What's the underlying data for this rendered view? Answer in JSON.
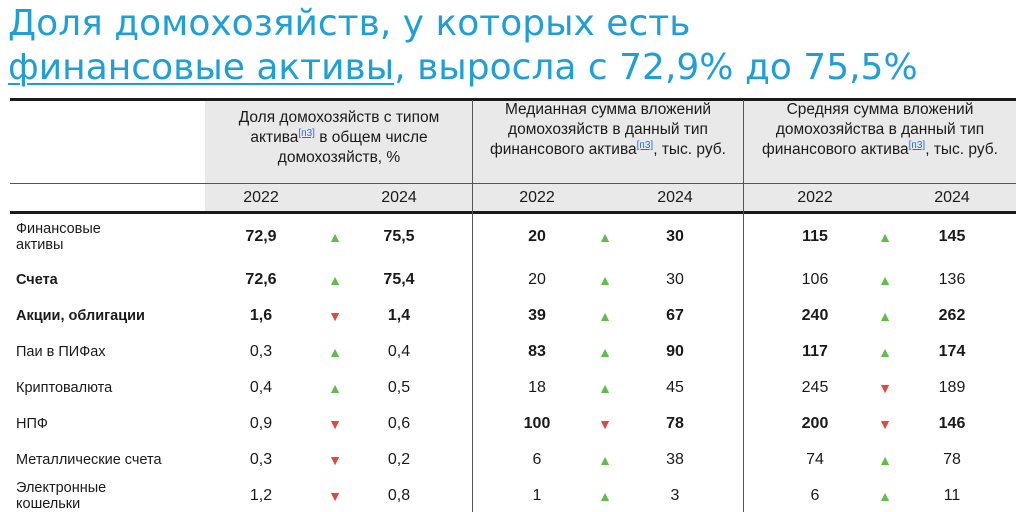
{
  "title": {
    "line1": "Доля домохозяйств, у которых есть",
    "line2_link": "финансовые активы",
    "line2_rest": ", выросла с 72,9% до 75,5%"
  },
  "header": {
    "groups": [
      {
        "text_before": "Доля домохозяйств с типом актива",
        "ref": "[п3]",
        "text_after": " в общем числе домохозяйств, %"
      },
      {
        "text_before": "Медианная сумма вложений домохозяйств  в данный тип финансового актива",
        "ref": "[п3]",
        "text_after": ", тыс. руб."
      },
      {
        "text_before": "Средняя сумма вложений домохозяйства в данный тип финансового актива",
        "ref": "[п3]",
        "text_after": ", тыс. руб."
      }
    ],
    "years": [
      "2022",
      "2024",
      "2022",
      "2024",
      "2022",
      "2024"
    ]
  },
  "colors": {
    "title": "#1f9fd8",
    "up": "#5fbd4a",
    "down": "#e0493f",
    "header_bg": "#e9e9e9"
  },
  "rows": [
    {
      "label": "Финансовые активы",
      "label_bold": false,
      "groups": [
        {
          "v1": "72,9",
          "v2": "75,5",
          "dir": "up",
          "bold": true
        },
        {
          "v1": "20",
          "v2": "30",
          "dir": "up",
          "bold": true
        },
        {
          "v1": "115",
          "v2": "145",
          "dir": "up",
          "bold": true
        }
      ]
    },
    {
      "label": "Счета",
      "label_bold": true,
      "groups": [
        {
          "v1": "72,6",
          "v2": "75,4",
          "dir": "up",
          "bold": true
        },
        {
          "v1": "20",
          "v2": "30",
          "dir": "up",
          "bold": false
        },
        {
          "v1": "106",
          "v2": "136",
          "dir": "up",
          "bold": false
        }
      ]
    },
    {
      "label": "Акции, облигации",
      "label_bold": true,
      "groups": [
        {
          "v1": "1,6",
          "v2": "1,4",
          "dir": "down",
          "bold": true
        },
        {
          "v1": "39",
          "v2": "67",
          "dir": "up",
          "bold": true
        },
        {
          "v1": "240",
          "v2": "262",
          "dir": "up",
          "bold": true
        }
      ]
    },
    {
      "label": "Паи в ПИФах",
      "label_bold": false,
      "groups": [
        {
          "v1": "0,3",
          "v2": "0,4",
          "dir": "up",
          "bold": false
        },
        {
          "v1": "83",
          "v2": "90",
          "dir": "up",
          "bold": true
        },
        {
          "v1": "117",
          "v2": "174",
          "dir": "up",
          "bold": true
        }
      ]
    },
    {
      "label": "Криптовалюта",
      "label_bold": false,
      "groups": [
        {
          "v1": "0,4",
          "v2": "0,5",
          "dir": "up",
          "bold": false
        },
        {
          "v1": "18",
          "v2": "45",
          "dir": "up",
          "bold": false
        },
        {
          "v1": "245",
          "v2": "189",
          "dir": "down",
          "bold": false
        }
      ]
    },
    {
      "label": "НПФ",
      "label_bold": false,
      "groups": [
        {
          "v1": "0,9",
          "v2": "0,6",
          "dir": "down",
          "bold": false
        },
        {
          "v1": "100",
          "v2": "78",
          "dir": "down",
          "bold": true
        },
        {
          "v1": "200",
          "v2": "146",
          "dir": "down",
          "bold": true
        }
      ]
    },
    {
      "label": "Металлические счета",
      "label_bold": false,
      "groups": [
        {
          "v1": "0,3",
          "v2": "0,2",
          "dir": "down",
          "bold": false
        },
        {
          "v1": "6",
          "v2": "38",
          "dir": "up",
          "bold": false
        },
        {
          "v1": "74",
          "v2": "78",
          "dir": "up",
          "bold": false
        }
      ]
    },
    {
      "label": "Электронные кошельки",
      "label_bold": false,
      "groups": [
        {
          "v1": "1,2",
          "v2": "0,8",
          "dir": "down",
          "bold": false
        },
        {
          "v1": "1",
          "v2": "3",
          "dir": "up",
          "bold": false
        },
        {
          "v1": "6",
          "v2": "11",
          "dir": "up",
          "bold": false
        }
      ]
    }
  ]
}
